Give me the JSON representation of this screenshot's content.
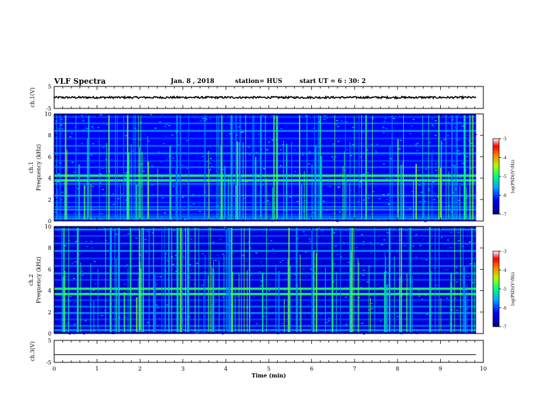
{
  "header": {
    "title": "VLF Spectra",
    "date": "Jan. 8 , 2018",
    "station": "station= HUS",
    "start_time": "start UT = 6 : 30: 2"
  },
  "chart_data": [
    {
      "type": "line",
      "panel": "ch1-waveform",
      "ylabel": "ch.1(V)",
      "xlim": [
        0,
        10
      ],
      "ylim": [
        -5,
        5
      ],
      "yticks": [
        "5",
        "-5"
      ],
      "trace_level": 0
    },
    {
      "type": "heatmap",
      "panel": "ch1-spectrogram",
      "ylabel": "ch.1 Frequency (kHz)",
      "xlim": [
        0,
        9.83
      ],
      "ylim": [
        0,
        10
      ],
      "yticks": [
        "0",
        "2",
        "4",
        "6",
        "8",
        "10"
      ],
      "background_level": -6.3,
      "bands_khz": [
        0.2,
        0.4,
        0.6,
        1.05,
        1.3,
        1.7,
        2.35,
        3.45,
        3.8,
        4.25,
        5.0,
        5.6,
        6.3,
        7.0,
        7.7,
        8.4,
        9.1,
        9.7
      ],
      "colorbar": {
        "label": "log(PSD)(V²/Hz)",
        "ticks": [
          "-3",
          "-4",
          "-5",
          "-6",
          "-7"
        ],
        "range": [
          -7,
          -3
        ]
      }
    },
    {
      "type": "heatmap",
      "panel": "ch2-spectrogram",
      "ylabel": "ch.2 Frequency (kHz)",
      "xlim": [
        0,
        9.83
      ],
      "ylim": [
        0,
        10
      ],
      "yticks": [
        "0",
        "2",
        "4",
        "6",
        "8",
        "10"
      ],
      "background_level": -6.5,
      "bands_khz": [
        0.3,
        0.7,
        1.3,
        1.9,
        2.5,
        3.1,
        3.7,
        4.2,
        5.0,
        5.6,
        6.3,
        7.0,
        7.7,
        8.4,
        9.1,
        9.7
      ],
      "colorbar": {
        "label": "log(PSD)(V²/Hz)",
        "ticks": [
          "-3",
          "-4",
          "-5",
          "-6",
          "-7"
        ],
        "range": [
          -7,
          -3
        ]
      }
    },
    {
      "type": "line",
      "panel": "ch3-waveform",
      "ylabel": "ch.3(V)",
      "xlim": [
        0,
        10
      ],
      "ylim": [
        -5,
        5
      ],
      "yticks": [
        "5",
        "-5"
      ],
      "trace_level": -1.5
    }
  ],
  "x_axis": {
    "label": "Time (min)",
    "ticks": [
      "0",
      "1",
      "2",
      "3",
      "4",
      "5",
      "6",
      "7",
      "8",
      "9",
      "10"
    ]
  }
}
